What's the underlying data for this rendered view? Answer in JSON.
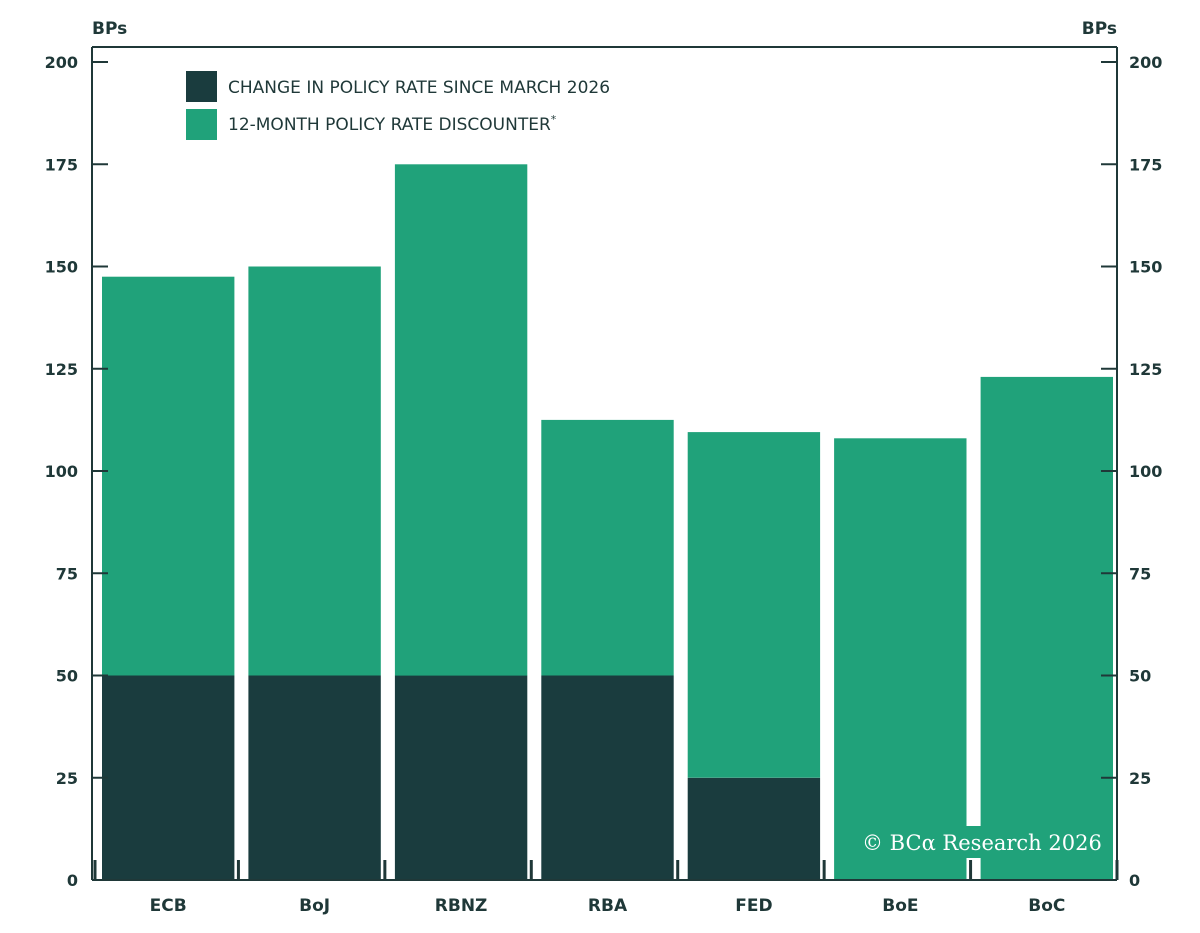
{
  "chart_data": {
    "type": "bar",
    "stacked": true,
    "categories": [
      "ECB",
      "BoJ",
      "RBNZ",
      "RBA",
      "FED",
      "BoE",
      "BoC"
    ],
    "series": [
      {
        "name": "CHANGE IN POLICY RATE SINCE MARCH 2026",
        "color": "#1a3c3e",
        "values": [
          50,
          50,
          50,
          50,
          25,
          0,
          0
        ]
      },
      {
        "name": "12-MONTH POLICY RATE DISCOUNTER",
        "color": "#20a27a",
        "values": [
          97.5,
          100,
          125,
          62.5,
          84.5,
          108,
          123
        ]
      }
    ],
    "legend_note": "*",
    "ylabel_left": "BPs",
    "ylabel_right": "BPs",
    "ylim": [
      0,
      200
    ],
    "yticks": [
      0,
      25,
      50,
      75,
      100,
      125,
      150,
      175,
      200
    ],
    "grid": false,
    "legend_placement": "top-left",
    "copyright": "© BCα Research 2026"
  },
  "colors": {
    "axis": "#1f3838",
    "text": "#1f3838"
  }
}
